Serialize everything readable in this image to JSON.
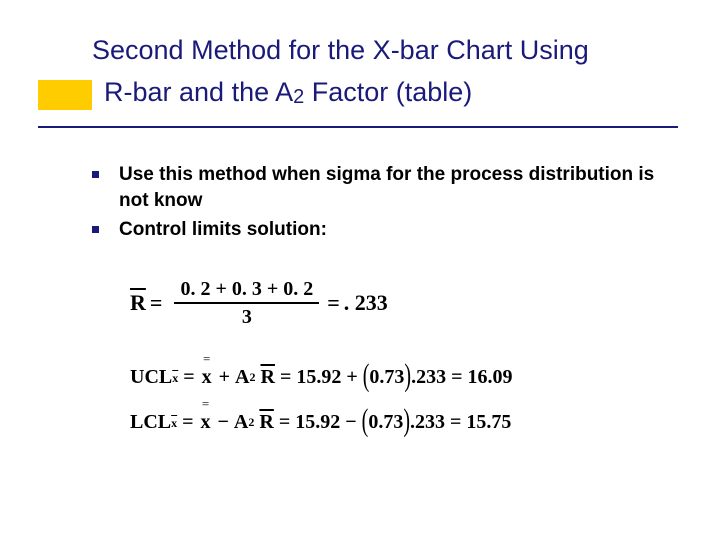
{
  "colors": {
    "accent": "#ffcc00",
    "title": "#1a1a7a",
    "rule": "#1a1a7a",
    "bullet_square": "#1a1a7a",
    "text": "#000000",
    "background": "#ffffff"
  },
  "title": {
    "line1": "Second Method for the X-bar Chart Using",
    "line2_pre": "R-bar and the A",
    "line2_sub": "2",
    "line2_post": " Factor (table)",
    "fontsize": 27,
    "font_family": "Arial"
  },
  "bullets": [
    "Use this method when sigma for the process distribution is not know",
    "Control limits solution:"
  ],
  "formulas": {
    "rbar": {
      "lhs": "R",
      "numerator": "0. 2 + 0. 3 + 0. 2",
      "denominator": "3",
      "rhs": ". 233"
    },
    "ucl": {
      "label": "UCL",
      "sub": "x",
      "xbar_val": "15.92",
      "op": "+",
      "a2": "0.73",
      "rbar_val": ".233",
      "result": "16.09"
    },
    "lcl": {
      "label": "LCL",
      "sub": "x",
      "xbar_val": "15.92",
      "op": "−",
      "a2": "0.73",
      "rbar_val": ".233",
      "result": "15.75"
    },
    "font_family": "Times New Roman"
  }
}
